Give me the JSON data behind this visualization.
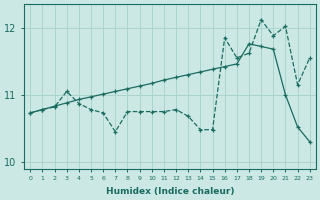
{
  "title": "",
  "xlabel": "Humidex (Indice chaleur)",
  "ylabel": "",
  "bg_color": "#cce8e4",
  "line_color": "#1a6b60",
  "grid_color": "#aad4cc",
  "xlim": [
    -0.5,
    23.5
  ],
  "ylim": [
    9.9,
    12.35
  ],
  "yticks": [
    10,
    11,
    12
  ],
  "xticks": [
    0,
    1,
    2,
    3,
    4,
    5,
    6,
    7,
    8,
    9,
    10,
    11,
    12,
    13,
    14,
    15,
    16,
    17,
    18,
    19,
    20,
    21,
    22,
    23
  ],
  "series_smooth_x": [
    0,
    1,
    2,
    3,
    4,
    5,
    6,
    7,
    8,
    9,
    10,
    11,
    12,
    13,
    14,
    15,
    16,
    17,
    18,
    19,
    20,
    21,
    22,
    23
  ],
  "series_smooth_y": [
    10.73,
    10.78,
    10.83,
    10.88,
    10.93,
    10.97,
    11.01,
    11.05,
    11.09,
    11.13,
    11.17,
    11.22,
    11.26,
    11.3,
    11.34,
    11.38,
    11.42,
    11.46,
    11.76,
    11.72,
    11.68,
    11.0,
    10.52,
    10.3
  ],
  "series_jagged_x": [
    0,
    1,
    2,
    3,
    4,
    5,
    6,
    7,
    8,
    9,
    10,
    11,
    12,
    13,
    14,
    15,
    16,
    17,
    18,
    19,
    20,
    21,
    22,
    23
  ],
  "series_jagged_y": [
    10.73,
    10.78,
    10.82,
    11.05,
    10.87,
    10.78,
    10.73,
    10.45,
    10.75,
    10.75,
    10.75,
    10.75,
    10.78,
    10.68,
    10.48,
    10.48,
    11.85,
    11.55,
    11.62,
    12.12,
    11.88,
    12.02,
    11.15,
    11.55
  ]
}
